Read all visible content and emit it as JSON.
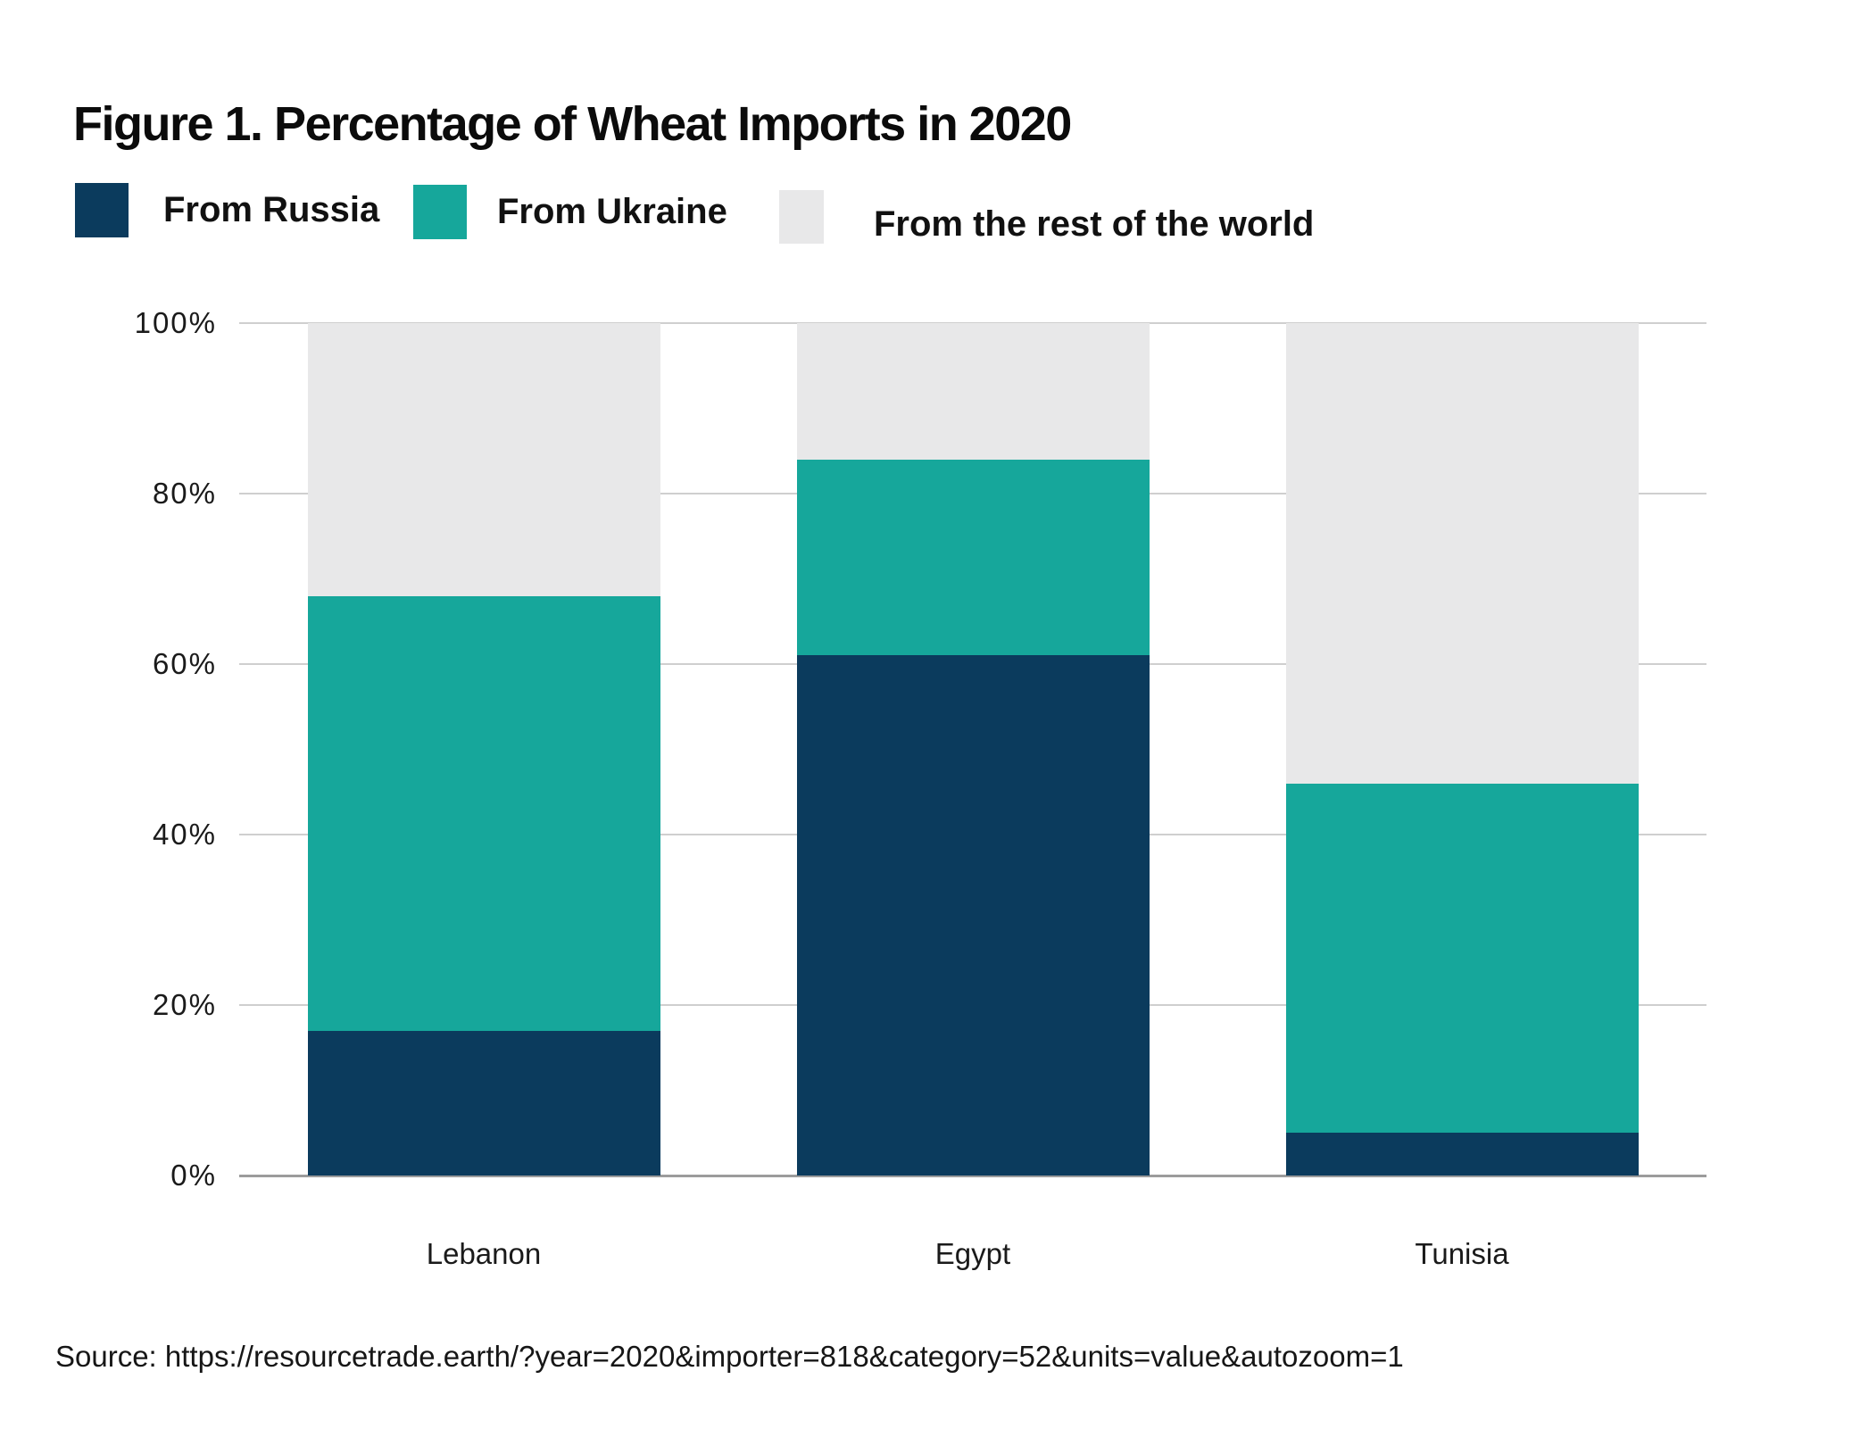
{
  "title": "Figure 1. Percentage of Wheat Imports in 2020",
  "legend": [
    {
      "label": "From Russia",
      "color": "#0b3b5d"
    },
    {
      "label": "From Ukraine",
      "color": "#16a79b"
    },
    {
      "label": "From the rest of the world",
      "color": "#e8e8e9"
    }
  ],
  "chart_data": {
    "type": "bar",
    "stacked": true,
    "title": "Figure 1. Percentage of Wheat Imports in 2020",
    "categories": [
      "Lebanon",
      "Egypt",
      "Tunisia"
    ],
    "series": [
      {
        "name": "From Russia",
        "color": "#0b3b5d",
        "values": [
          17,
          61,
          5
        ]
      },
      {
        "name": "From Ukraine",
        "color": "#16a79b",
        "values": [
          51,
          23,
          41
        ]
      },
      {
        "name": "From the rest of the world",
        "color": "#e8e8e9",
        "values": [
          32,
          16,
          54
        ]
      }
    ],
    "xlabel": "",
    "ylabel": "",
    "ylim": [
      0,
      100
    ],
    "yticks": [
      0,
      20,
      40,
      60,
      80,
      100
    ],
    "ytick_suffix": "%",
    "grid": true,
    "legend_position": "top"
  },
  "colors": {
    "text": "#111111",
    "gridline": "#cfcfcf",
    "axis_baseline": "#9c9c9c",
    "background": "#ffffff"
  },
  "source": "Source: https://resourcetrade.earth/?year=2020&importer=818&category=52&units=value&autozoom=1"
}
